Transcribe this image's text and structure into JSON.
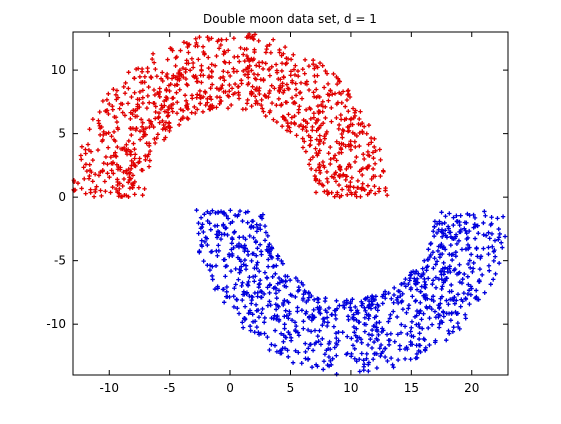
{
  "chart_data": {
    "type": "scatter",
    "title": "Double moon data set, d = 1",
    "xlabel": "",
    "ylabel": "",
    "xlim": [
      -13,
      23
    ],
    "ylim": [
      -14,
      13
    ],
    "xticks": [
      -10,
      -5,
      0,
      5,
      10,
      15,
      20
    ],
    "yticks": [
      -10,
      -5,
      0,
      5,
      10
    ],
    "xtick_labels": [
      "-10",
      "-5",
      "0",
      "5",
      "10",
      "15",
      "20"
    ],
    "ytick_labels": [
      "-10",
      "-5",
      "0",
      "5",
      "10"
    ],
    "grid": false,
    "legend": "none",
    "series": [
      {
        "color": "#e00000",
        "marker": "+",
        "count": 1000,
        "shape": "upper half-annulus",
        "center": [
          0,
          0
        ],
        "radius_range": [
          7,
          13
        ],
        "angle_range_deg": [
          0,
          180
        ]
      },
      {
        "color": "#0000dd",
        "marker": "+",
        "count": 1000,
        "shape": "lower half-annulus",
        "center": [
          10,
          -1
        ],
        "radius_range": [
          7,
          13
        ],
        "angle_range_deg": [
          180,
          360
        ]
      }
    ]
  }
}
